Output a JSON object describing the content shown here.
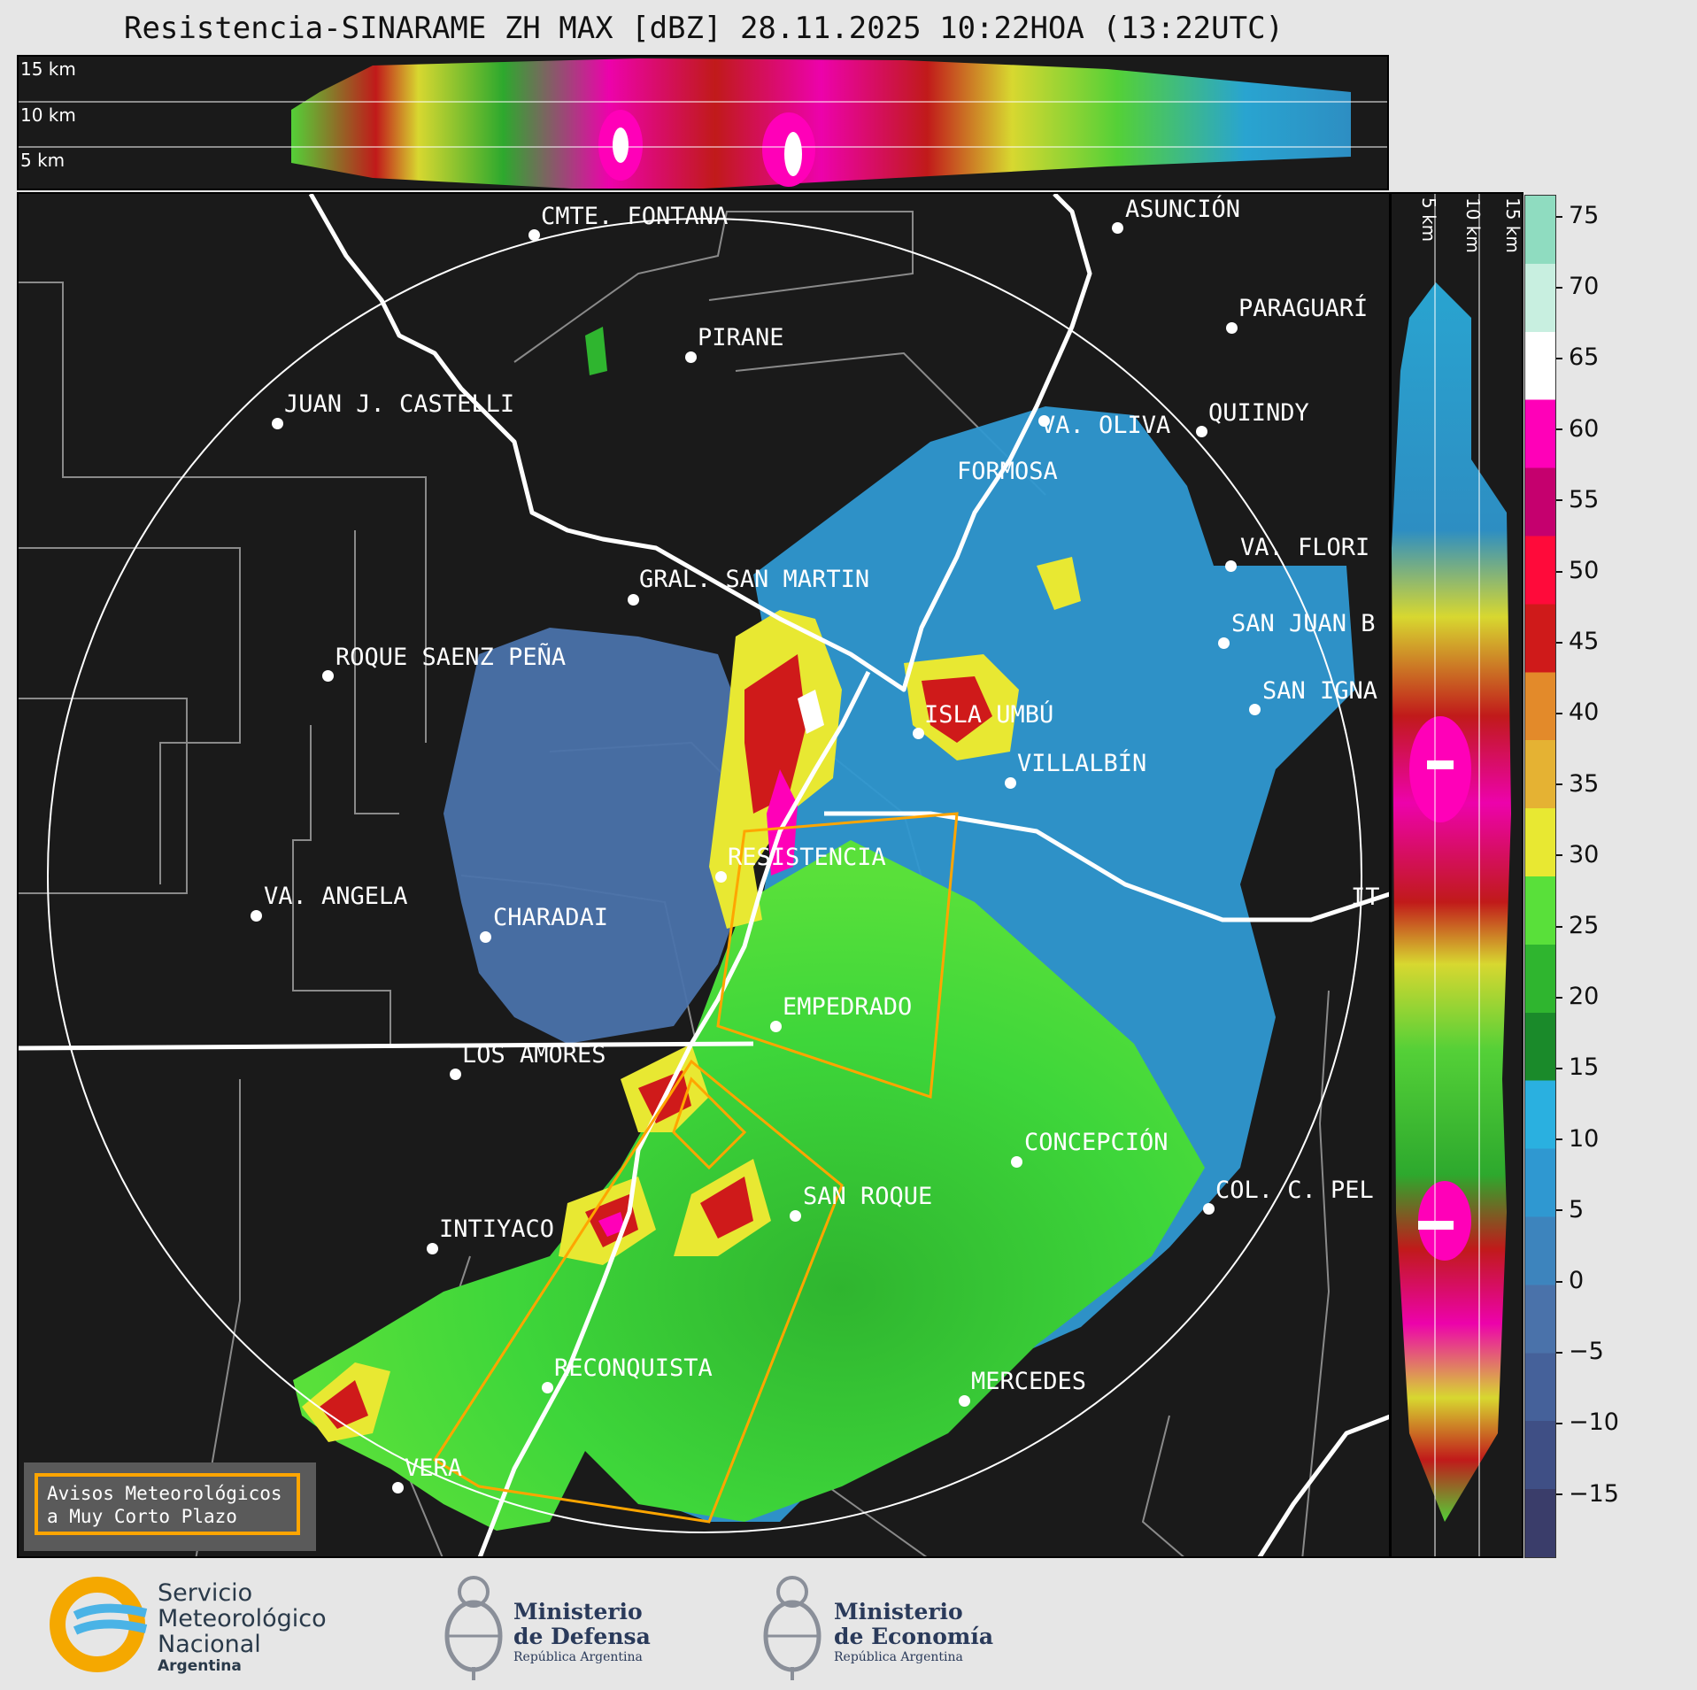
{
  "title": "Resistencia-SINARAME ZH MAX [dBZ] 28.11.2025 10:22HOA (13:22UTC)",
  "top_panel": {
    "height_labels": [
      "15 km",
      "10 km",
      "5 km"
    ]
  },
  "side_panel": {
    "height_labels": [
      "5 km",
      "10 km",
      "15 km"
    ]
  },
  "colorbar": {
    "unit": "dBZ",
    "ticks": [
      "75",
      "70",
      "65",
      "60",
      "55",
      "50",
      "45",
      "40",
      "35",
      "30",
      "25",
      "20",
      "15",
      "10",
      "5",
      "0",
      "−5",
      "−10",
      "−15"
    ],
    "colors": [
      "#3a3d6a",
      "#3f4f85",
      "#45619a",
      "#4a72aa",
      "#3d84bd",
      "#2f98d1",
      "#2ab0e0",
      "#1a8a2a",
      "#2fb52f",
      "#59e03a",
      "#e8e832",
      "#e5b233",
      "#e38a2a",
      "#cf1a1a",
      "#ff0a3a",
      "#c5006e",
      "#ff00b8",
      "#ffffff",
      "#c8efe0",
      "#8fdcc0"
    ]
  },
  "cities": [
    {
      "name": "CMTE. FONTANA"
    },
    {
      "name": "ASUNCIÓN"
    },
    {
      "name": "PARAGUARÍ"
    },
    {
      "name": "PIRANE"
    },
    {
      "name": "JUAN J. CASTELLI"
    },
    {
      "name": "VA. OLIVA"
    },
    {
      "name": "QUIINDY"
    },
    {
      "name": "FORMOSA"
    },
    {
      "name": "VA. FLORI"
    },
    {
      "name": "GRAL. SAN MARTIN"
    },
    {
      "name": "SAN JUAN B"
    },
    {
      "name": "ROQUE SAENZ PEÑA"
    },
    {
      "name": "SAN IGNA"
    },
    {
      "name": "ISLA UMBÚ"
    },
    {
      "name": "VILLALBÍN"
    },
    {
      "name": "RESISTENCIA"
    },
    {
      "name": "VA. ANGELA"
    },
    {
      "name": "CHARADAI"
    },
    {
      "name": "IT"
    },
    {
      "name": "EMPEDRADO"
    },
    {
      "name": "LOS AMORES"
    },
    {
      "name": "CONCEPCIÓN"
    },
    {
      "name": "SAN ROQUE"
    },
    {
      "name": "COL. C. PEL"
    },
    {
      "name": "INTIYACO"
    },
    {
      "name": "RECONQUISTA"
    },
    {
      "name": "MERCEDES"
    },
    {
      "name": "VERA"
    }
  ],
  "avisos_box": {
    "line1": "Avisos Meteorológicos",
    "line2": "a Muy Corto Plazo"
  },
  "footer": {
    "smn": {
      "line1": "Servicio",
      "line2": "Meteorológico",
      "line3": "Nacional",
      "line4": "Argentina"
    },
    "defensa": {
      "line1": "Ministerio",
      "line2": "de Defensa",
      "line3": "República Argentina"
    },
    "economia": {
      "line1": "Ministerio",
      "line2": "de Economía",
      "line3": "República Argentina"
    }
  }
}
